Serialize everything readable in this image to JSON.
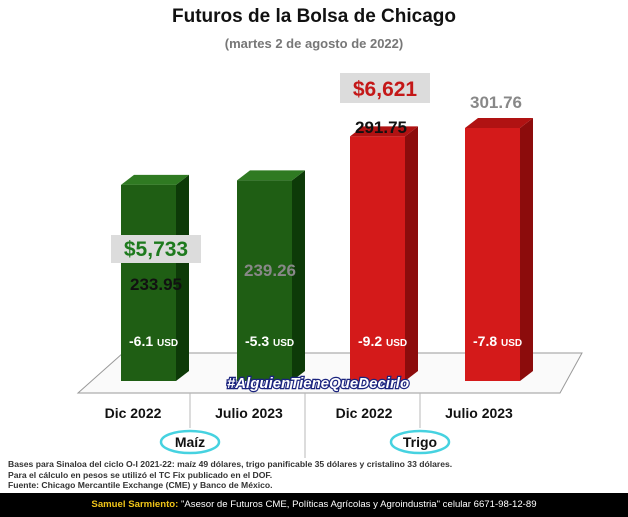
{
  "title": "Futuros de la Bolsa de Chicago",
  "subtitle": "(martes 2 de agosto de 2022)",
  "hashtag": "#AlguienTieneQueDecirlo",
  "colors": {
    "maiz": "#1f5e14",
    "maiz_dark": "#0d3a08",
    "maiz_top": "#2f7a22",
    "trigo": "#d41a1a",
    "trigo_dark": "#8c0c0c",
    "trigo_top": "#b01212",
    "peso_green": "#1e7a1e",
    "peso_red": "#c41818"
  },
  "chart_data": {
    "type": "bar",
    "ylim": [
      0,
      320
    ],
    "categories": [
      "Dic 2022",
      "Julio 2023",
      "Dic 2022",
      "Julio 2023"
    ],
    "groups": [
      {
        "name": "Maíz",
        "category_indices": [
          0,
          1
        ],
        "peso_price": "$5,733"
      },
      {
        "name": "Trigo",
        "category_indices": [
          2,
          3
        ],
        "peso_price": "$6,621"
      }
    ],
    "values": [
      233.95,
      239.26,
      291.75,
      301.76
    ],
    "value_labels": [
      "233.95",
      "239.26",
      "291.75",
      "301.76"
    ],
    "changes": [
      "-6.1",
      "-5.3",
      "-9.2",
      "-7.8"
    ],
    "change_unit": "USD"
  },
  "notes": [
    "Bases para Sinaloa del ciclo O-I 2021-22: maíz 49 dólares, trigo panificable 35 dólares y cristalino 33 dólares.",
    "Para el cálculo en pesos se utilizó el TC Fix publicado en el DOF.",
    "Fuente: Chicago Mercantile Exchange (CME) y Banco de México."
  ],
  "footer": {
    "author": "Samuel Sarmiento:",
    "text": " \"Asesor de Futuros CME, Políticas Agrícolas y Agroindustria\" celular 6671-98-12-89"
  }
}
